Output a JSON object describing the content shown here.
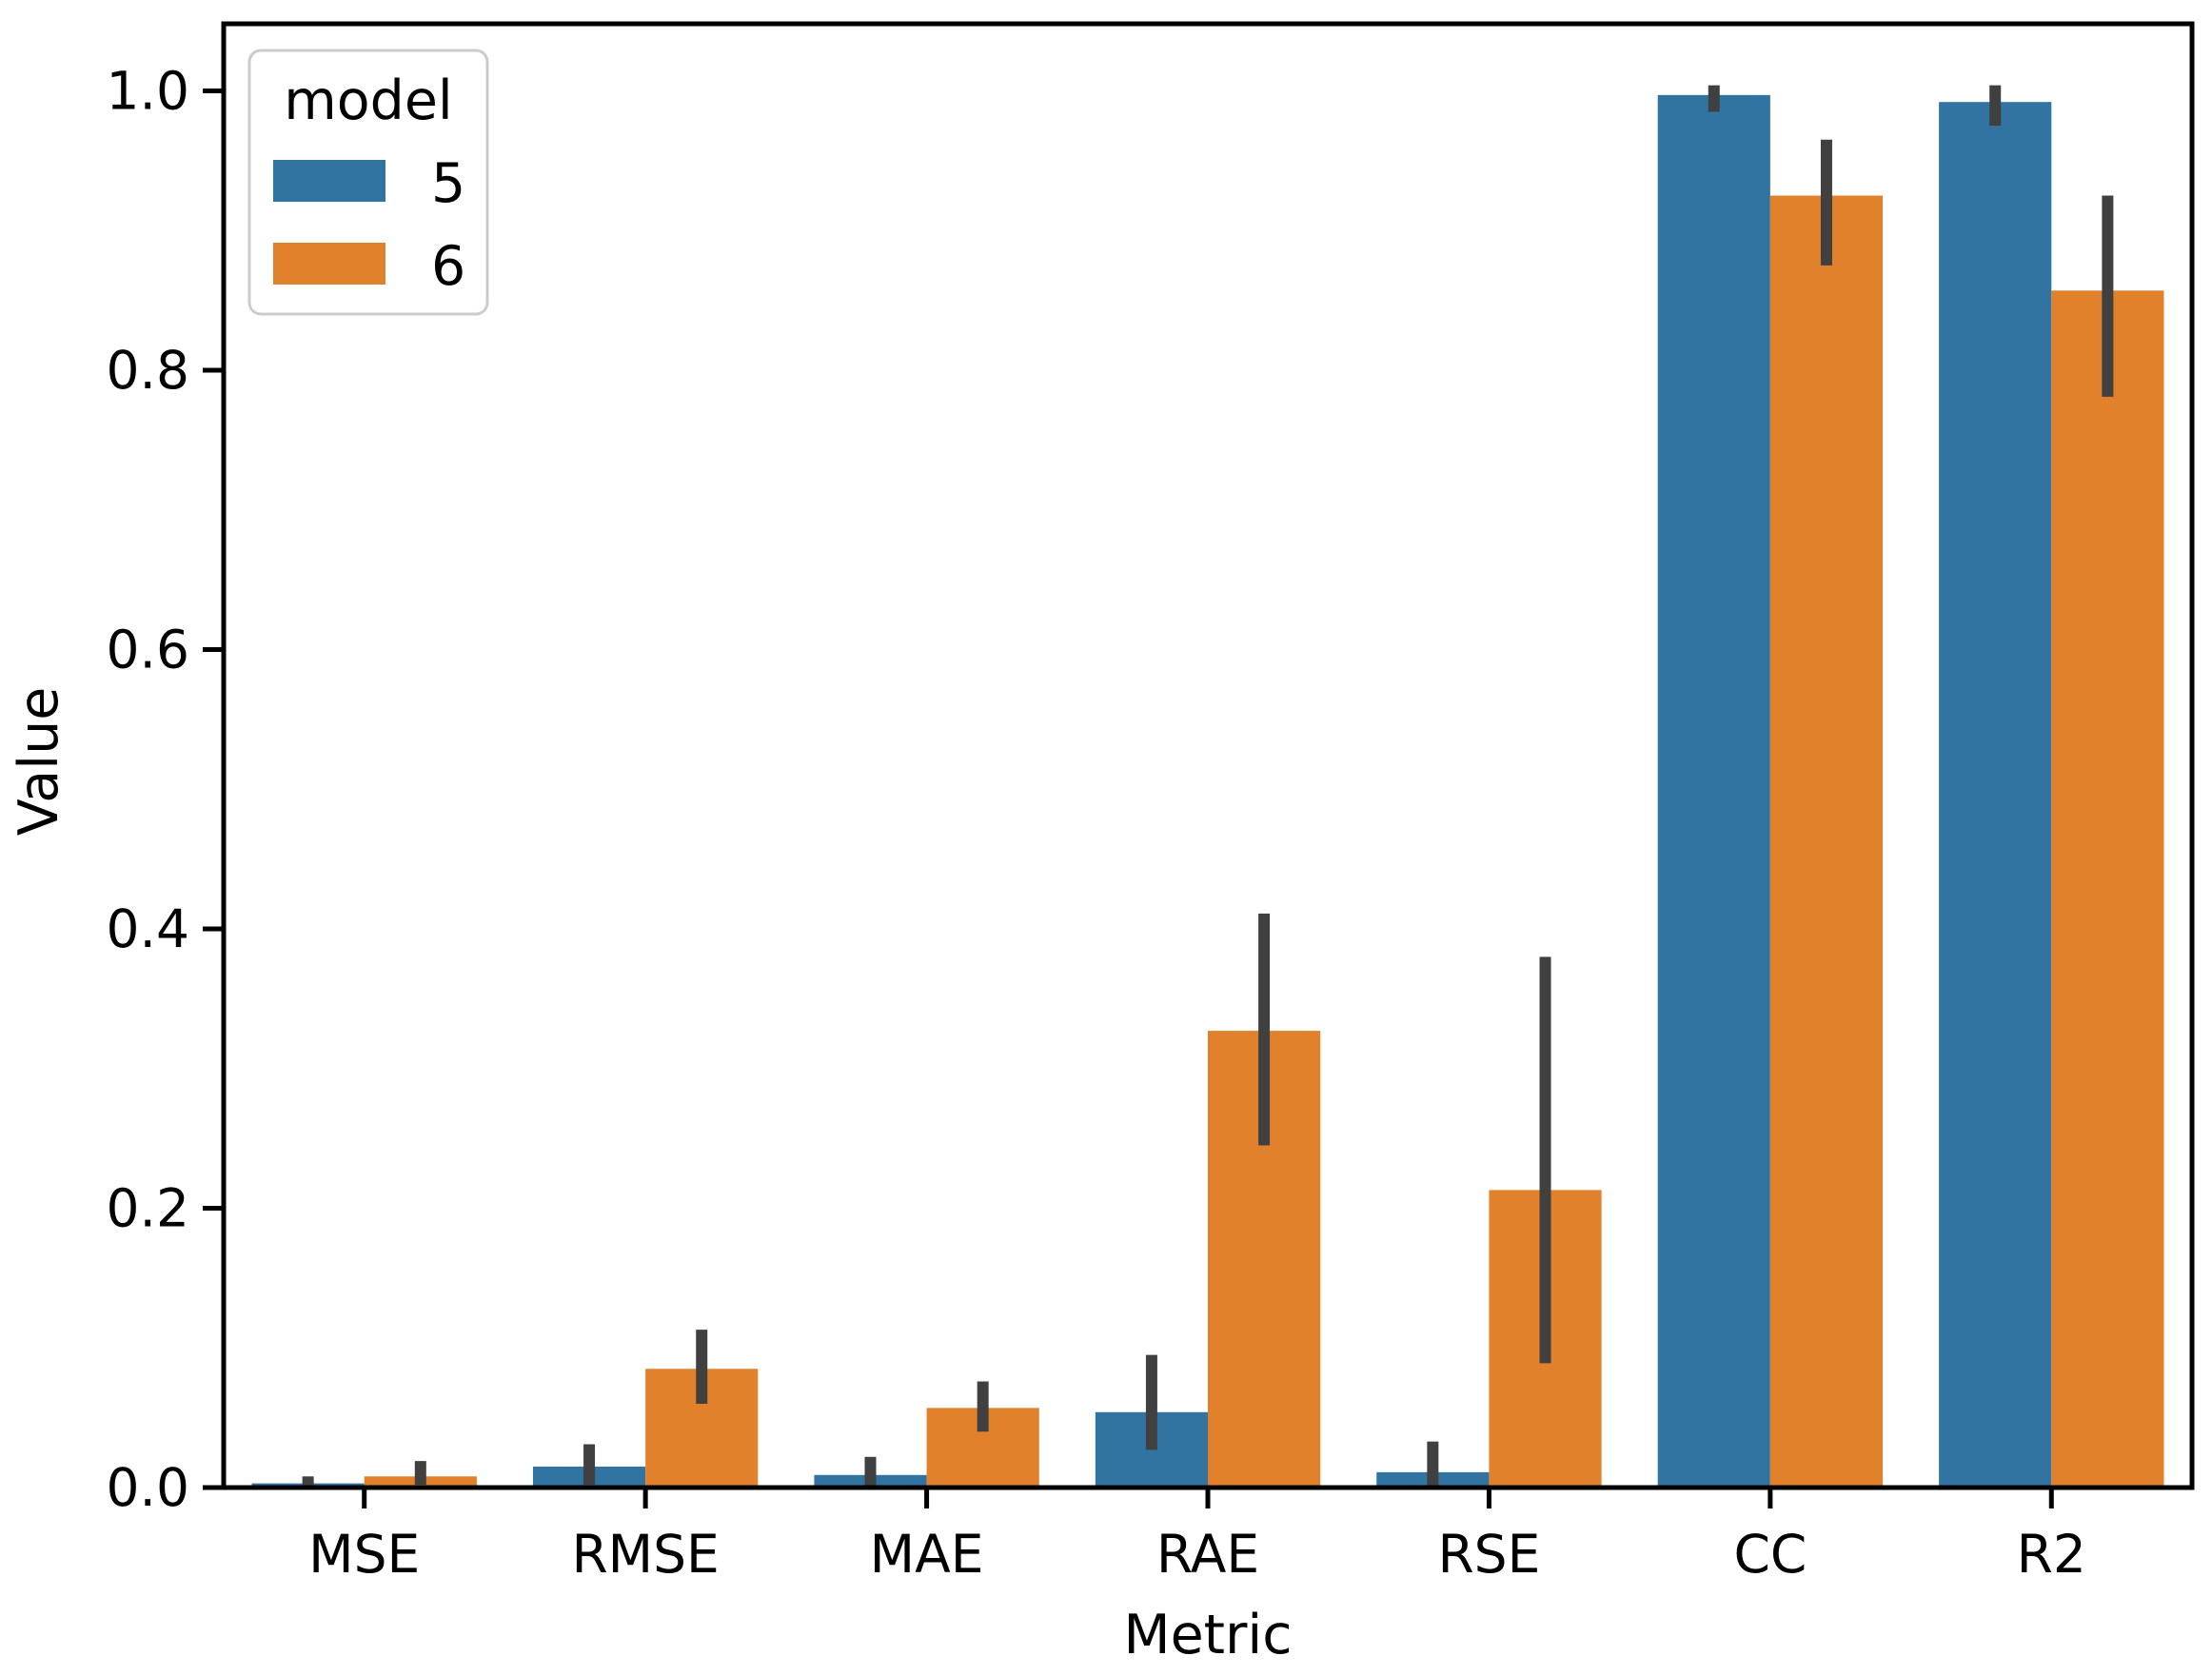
{
  "chart_data": {
    "type": "bar",
    "title": "",
    "xlabel": "Metric",
    "ylabel": "Value",
    "categories": [
      "MSE",
      "RMSE",
      "MAE",
      "RAE",
      "RSE",
      "CC",
      "R2"
    ],
    "ylim": [
      0,
      1.048
    ],
    "yticks": [
      0.0,
      0.2,
      0.4,
      0.6,
      0.8,
      1.0
    ],
    "ytick_labels": [
      "0.0",
      "0.2",
      "0.4",
      "0.6",
      "0.8",
      "1.0"
    ],
    "grid": false,
    "legend": {
      "title": "model",
      "position": "upper left"
    },
    "bar_group_width_fraction": 0.8,
    "error_bar_color": "#404040",
    "axis_color": "#000000",
    "background_color": "#ffffff",
    "series": [
      {
        "name": "5",
        "color": "#3274a1",
        "values": [
          0.003,
          0.015,
          0.009,
          0.054,
          0.011,
          0.997,
          0.992
        ],
        "ci_low": [
          0.0,
          0.002,
          0.0,
          0.027,
          0.0,
          0.985,
          0.975
        ],
        "ci_high": [
          0.008,
          0.031,
          0.022,
          0.095,
          0.033,
          1.004,
          1.004
        ]
      },
      {
        "name": "6",
        "color": "#e1812c",
        "values": [
          0.008,
          0.085,
          0.057,
          0.327,
          0.213,
          0.925,
          0.857
        ],
        "ci_low": [
          0.002,
          0.06,
          0.04,
          0.245,
          0.089,
          0.875,
          0.781
        ],
        "ci_high": [
          0.019,
          0.113,
          0.076,
          0.411,
          0.38,
          0.965,
          0.925
        ]
      }
    ]
  }
}
